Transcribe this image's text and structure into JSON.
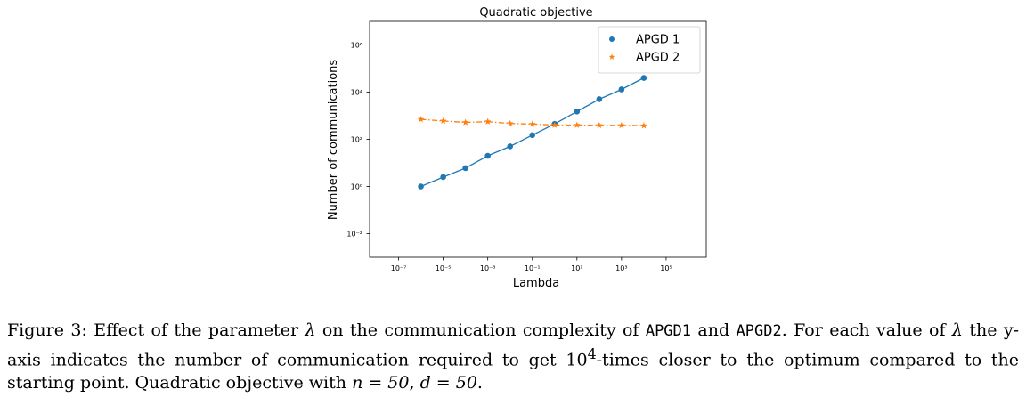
{
  "chart_data": {
    "type": "scatter",
    "title": "Quadratic objective",
    "xlabel": "Lambda",
    "ylabel": "Number of communications",
    "xscale": "log",
    "yscale": "log",
    "xlim_exp": [
      -8.3,
      6.8
    ],
    "ylim_exp": [
      -3.0,
      7.0
    ],
    "xticks": [
      {
        "exp": -7,
        "label": "10⁻⁷"
      },
      {
        "exp": -5,
        "label": "10⁻⁵"
      },
      {
        "exp": -3,
        "label": "10⁻³"
      },
      {
        "exp": -1,
        "label": "10⁻¹"
      },
      {
        "exp": 1,
        "label": "10¹"
      },
      {
        "exp": 3,
        "label": "10³"
      },
      {
        "exp": 5,
        "label": "10⁵"
      }
    ],
    "yticks": [
      {
        "exp": -2,
        "label": "10⁻²"
      },
      {
        "exp": 0,
        "label": "10⁰"
      },
      {
        "exp": 2,
        "label": "10²"
      },
      {
        "exp": 4,
        "label": "10⁴"
      },
      {
        "exp": 6,
        "label": "10⁶"
      }
    ],
    "legend_position": "top-right",
    "grid": false,
    "series": [
      {
        "name": "APGD 1",
        "color": "#1f77b4",
        "marker": "circle",
        "line_style": "solid",
        "x": [
          1e-06,
          1e-05,
          0.0001,
          0.001,
          0.01,
          0.1,
          1,
          10,
          100,
          1000,
          10000
        ],
        "y": [
          1,
          2.5,
          6,
          20,
          50,
          150,
          450,
          1500,
          5000,
          13000,
          40000
        ]
      },
      {
        "name": "APGD 2",
        "color": "#ff7f0e",
        "marker": "star",
        "line_style": "dashdot",
        "x": [
          1e-06,
          1e-05,
          0.0001,
          0.001,
          0.01,
          0.1,
          1,
          10,
          100,
          1000,
          10000
        ],
        "y": [
          700,
          600,
          520,
          560,
          470,
          440,
          400,
          400,
          390,
          390,
          380
        ]
      }
    ]
  },
  "caption": {
    "figure_label": "Figure 3:",
    "part1": "Effect of the parameter",
    "lambda": "λ",
    "part2": "on the communication complexity of",
    "algo1": "APGD1",
    "and": "and",
    "algo2": "APGD2",
    "part3": ". For each value of",
    "part4": "the y-axis indicates the number of communication required to get",
    "power_base": "10",
    "power_exp": "4",
    "part5": "-times closer to the optimum compared to the starting point. Quadratic objective with",
    "n_eq": "n = 50",
    "comma": ",",
    "d_eq": "d = 50",
    "period": "."
  }
}
